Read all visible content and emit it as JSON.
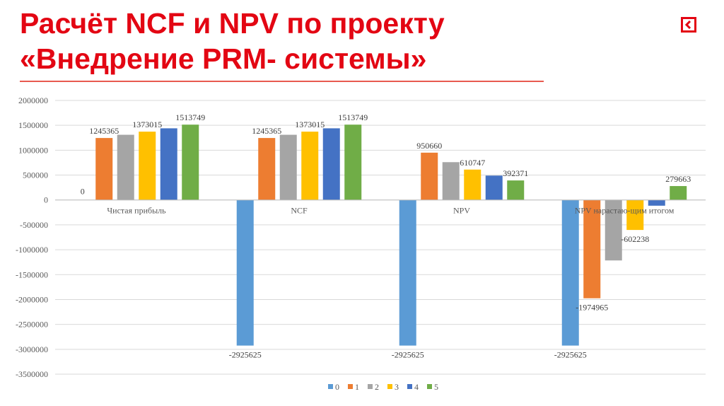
{
  "slide": {
    "title_line1": "Расчёт NCF и NPV по проекту",
    "title_line2": "«Внедрение PRM- системы»",
    "nav_icon": "back-arrow-icon",
    "accent_color": "#e30613"
  },
  "chart_data": {
    "type": "bar",
    "categories": [
      "Чистая прибыль",
      "NCF",
      "NPV",
      "NPV нарастаю-щим итогом"
    ],
    "ylim": [
      -3500000,
      2000000
    ],
    "yticks": [
      2000000,
      1500000,
      1000000,
      500000,
      0,
      -500000,
      -1000000,
      -1500000,
      -2000000,
      -2500000,
      -3000000,
      -3500000
    ],
    "grid": true,
    "legend_position": "bottom",
    "series": [
      {
        "name": "0",
        "color": "#5b9bd5",
        "values": [
          0,
          -2925625,
          -2925625,
          -2925625
        ],
        "labels": [
          "0",
          "-2925625",
          "-2925625",
          "-2925625"
        ]
      },
      {
        "name": "1",
        "color": "#ed7d31",
        "values": [
          1245365,
          1245365,
          950660,
          -1974965
        ],
        "labels": [
          "1245365",
          "1245365",
          "950660",
          "-1974965"
        ]
      },
      {
        "name": "2",
        "color": "#a5a5a5",
        "values": [
          1310000,
          1310000,
          760000,
          -1215000
        ],
        "labels": [
          "",
          "",
          "",
          ""
        ]
      },
      {
        "name": "3",
        "color": "#ffc000",
        "values": [
          1373015,
          1373015,
          610747,
          -602238
        ],
        "labels": [
          "1373015",
          "1373015",
          "610747",
          "-602238"
        ]
      },
      {
        "name": "4",
        "color": "#4472c4",
        "values": [
          1440000,
          1440000,
          490000,
          -115000
        ],
        "labels": [
          "",
          "",
          "",
          ""
        ]
      },
      {
        "name": "5",
        "color": "#70ad47",
        "values": [
          1513749,
          1513749,
          392371,
          279663
        ],
        "labels": [
          "1513749",
          "1513749",
          "392371",
          "279663"
        ]
      }
    ]
  }
}
